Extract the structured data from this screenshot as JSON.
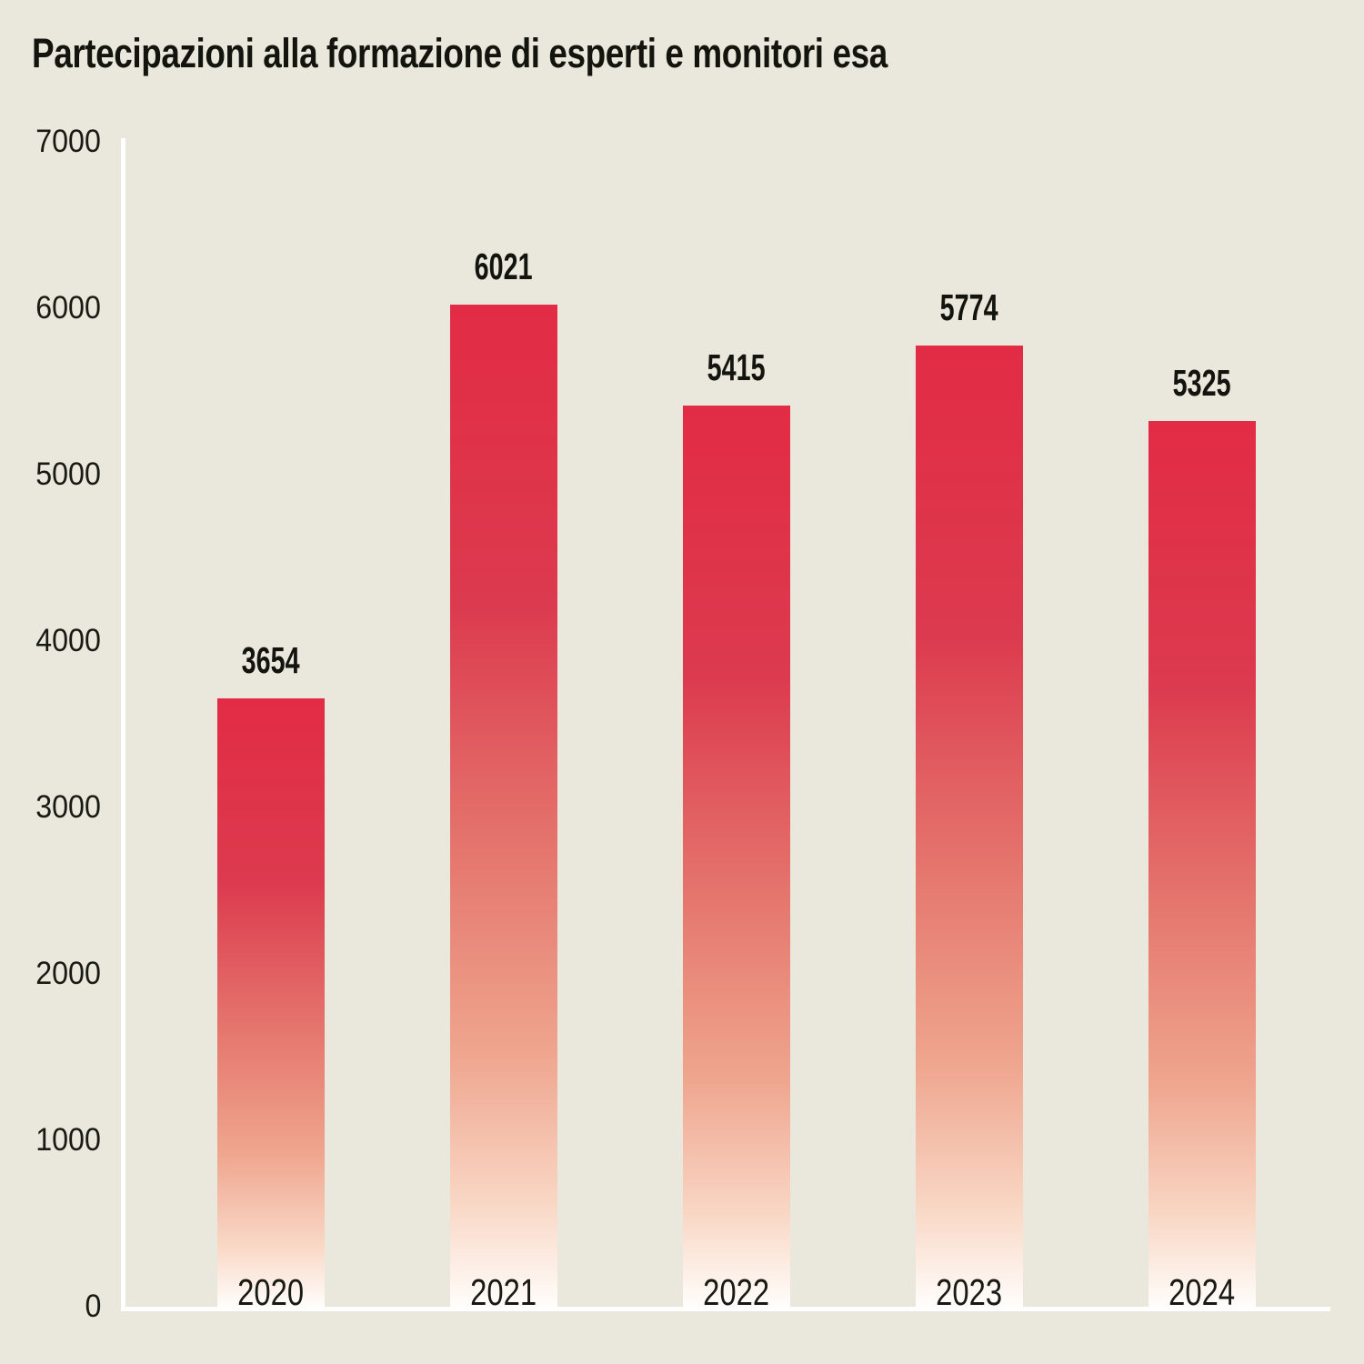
{
  "chart_data": {
    "type": "bar",
    "title": "Partecipazioni alla formazione di esperti e monitori esa",
    "categories": [
      "2020",
      "2021",
      "2022",
      "2023",
      "2024"
    ],
    "values": [
      3654,
      6021,
      5415,
      5774,
      5325
    ],
    "xlabel": "",
    "ylabel": "",
    "ylim": [
      0,
      7000
    ],
    "yticks": [
      0,
      1000,
      2000,
      3000,
      4000,
      5000,
      6000,
      7000
    ],
    "grid": false,
    "legend": null,
    "bar_labels_shown": true
  },
  "colors": {
    "background": "#eae8dc",
    "bar_gradient_top": "#e22c45",
    "bar_gradient_bottom": "#fffdfb",
    "axis_line": "#ffffff",
    "text": "#14140f"
  }
}
